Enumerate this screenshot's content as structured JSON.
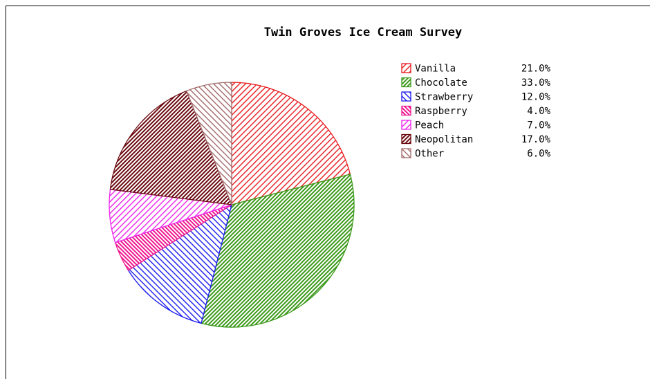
{
  "chart_data": {
    "type": "pie",
    "title": "Twin Groves Ice Cream Survey",
    "slices": [
      {
        "label": "Vanilla",
        "value": 21.0,
        "value_label": "21.0%",
        "color": "#e8191e",
        "hatch": "diag-down",
        "dense": false
      },
      {
        "label": "Chocolate",
        "value": 33.0,
        "value_label": "33.0%",
        "color": "#3c9a1a",
        "hatch": "diag-down",
        "dense": true
      },
      {
        "label": "Strawberry",
        "value": 12.0,
        "value_label": "12.0%",
        "color": "#1a1aee",
        "hatch": "diag-up",
        "dense": false
      },
      {
        "label": "Raspberry",
        "value": 4.0,
        "value_label": "4.0%",
        "color": "#f0168e",
        "hatch": "diag-up",
        "dense": true
      },
      {
        "label": "Peach",
        "value": 7.0,
        "value_label": "7.0%",
        "color": "#ee22ee",
        "hatch": "diag-down",
        "dense": false
      },
      {
        "label": "Neopolitan",
        "value": 17.0,
        "value_label": "17.0%",
        "color": "#6b0a10",
        "hatch": "diag-down",
        "dense": true
      },
      {
        "label": "Other",
        "value": 6.0,
        "value_label": "6.0%",
        "color": "#a36a6a",
        "hatch": "diag-up",
        "dense": false
      }
    ],
    "legend_placement": "right"
  }
}
